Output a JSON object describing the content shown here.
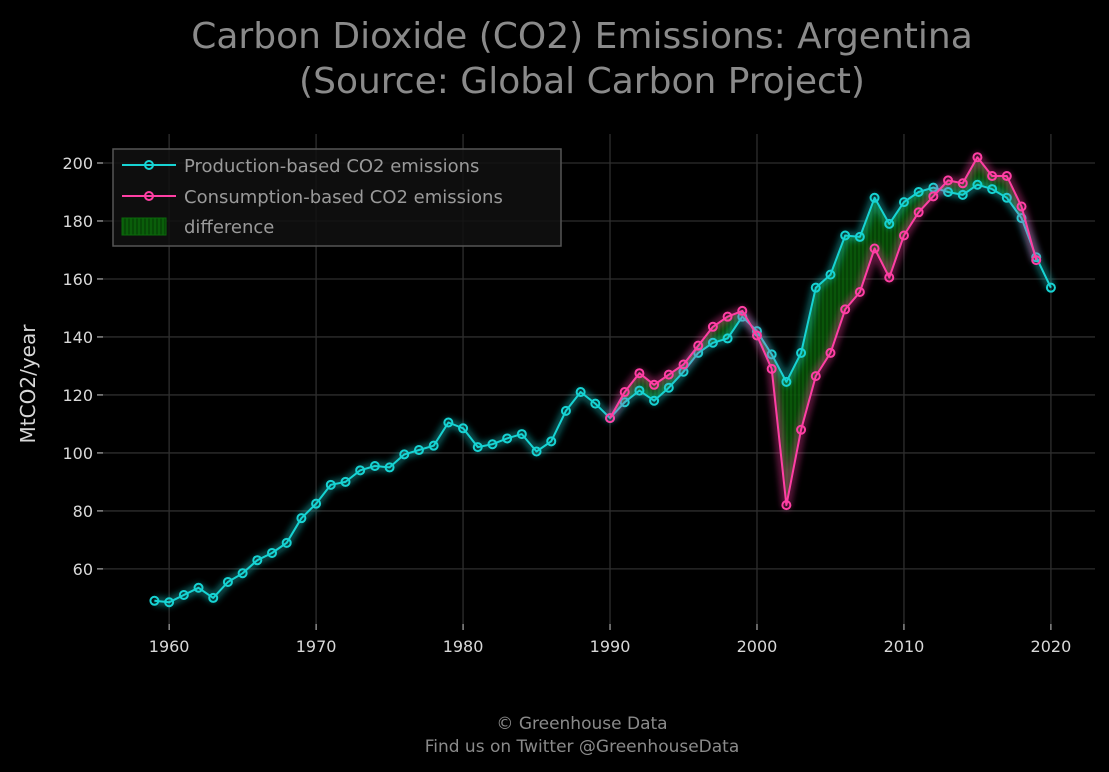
{
  "chart_data": {
    "type": "line",
    "title_line1": "Carbon Dioxide (CO2) Emissions: Argentina",
    "title_line2": "(Source: Global Carbon Project)",
    "xlabel": "",
    "ylabel": "MtCO2/year",
    "xlim": [
      1955.5,
      2023
    ],
    "ylim": [
      41,
      210
    ],
    "x_ticks": [
      1960,
      1970,
      1980,
      1990,
      2000,
      2010,
      2020
    ],
    "y_ticks": [
      60,
      80,
      100,
      120,
      140,
      160,
      180,
      200
    ],
    "grid": true,
    "legend_position": "top-left",
    "difference_label": "difference",
    "series": [
      {
        "name": "Production-based CO2 emissions",
        "color": "#17d3d3",
        "x": [
          1959,
          1960,
          1961,
          1962,
          1963,
          1964,
          1965,
          1966,
          1967,
          1968,
          1969,
          1970,
          1971,
          1972,
          1973,
          1974,
          1975,
          1976,
          1977,
          1978,
          1979,
          1980,
          1981,
          1982,
          1983,
          1984,
          1985,
          1986,
          1987,
          1988,
          1989,
          1990,
          1991,
          1992,
          1993,
          1994,
          1995,
          1996,
          1997,
          1998,
          1999,
          2000,
          2001,
          2002,
          2003,
          2004,
          2005,
          2006,
          2007,
          2008,
          2009,
          2010,
          2011,
          2012,
          2013,
          2014,
          2015,
          2016,
          2017,
          2018,
          2019,
          2020
        ],
        "values": [
          49,
          48.5,
          51,
          53.5,
          50,
          55.5,
          58.5,
          63,
          65.5,
          69,
          77.5,
          82.5,
          89,
          90,
          94,
          95.5,
          95,
          99.5,
          101,
          102.5,
          110.5,
          108.5,
          102,
          103,
          105,
          106.5,
          100.5,
          104,
          114.5,
          121,
          117,
          112,
          117.5,
          121.5,
          118,
          122.5,
          128,
          134.5,
          138,
          139.5,
          147,
          142,
          134,
          124.5,
          134.5,
          157,
          161.5,
          175,
          174.5,
          188,
          179,
          186.5,
          190,
          191.5,
          190,
          189,
          192.5,
          191,
          188,
          181,
          167.5,
          157
        ]
      },
      {
        "name": "Consumption-based CO2 emissions",
        "color": "#ff3fa4",
        "x": [
          1990,
          1991,
          1992,
          1993,
          1994,
          1995,
          1996,
          1997,
          1998,
          1999,
          2000,
          2001,
          2002,
          2003,
          2004,
          2005,
          2006,
          2007,
          2008,
          2009,
          2010,
          2011,
          2012,
          2013,
          2014,
          2015,
          2016,
          2017,
          2018,
          2019
        ],
        "values": [
          112,
          121,
          127.5,
          123.5,
          127,
          130.5,
          137,
          143.5,
          147,
          149,
          140.5,
          129,
          82,
          108,
          126.5,
          134.5,
          149.5,
          155.5,
          170.5,
          160.5,
          175,
          183,
          188.5,
          194,
          193,
          202,
          195.5,
          195.5,
          185,
          166.5
        ]
      }
    ]
  },
  "footer": {
    "line1": "© Greenhouse Data",
    "line2": "Find us on Twitter @GreenhouseData"
  },
  "colors": {
    "background": "#000000",
    "grid": "#2e2e2e",
    "difference_fill": "#0a6a0a"
  }
}
